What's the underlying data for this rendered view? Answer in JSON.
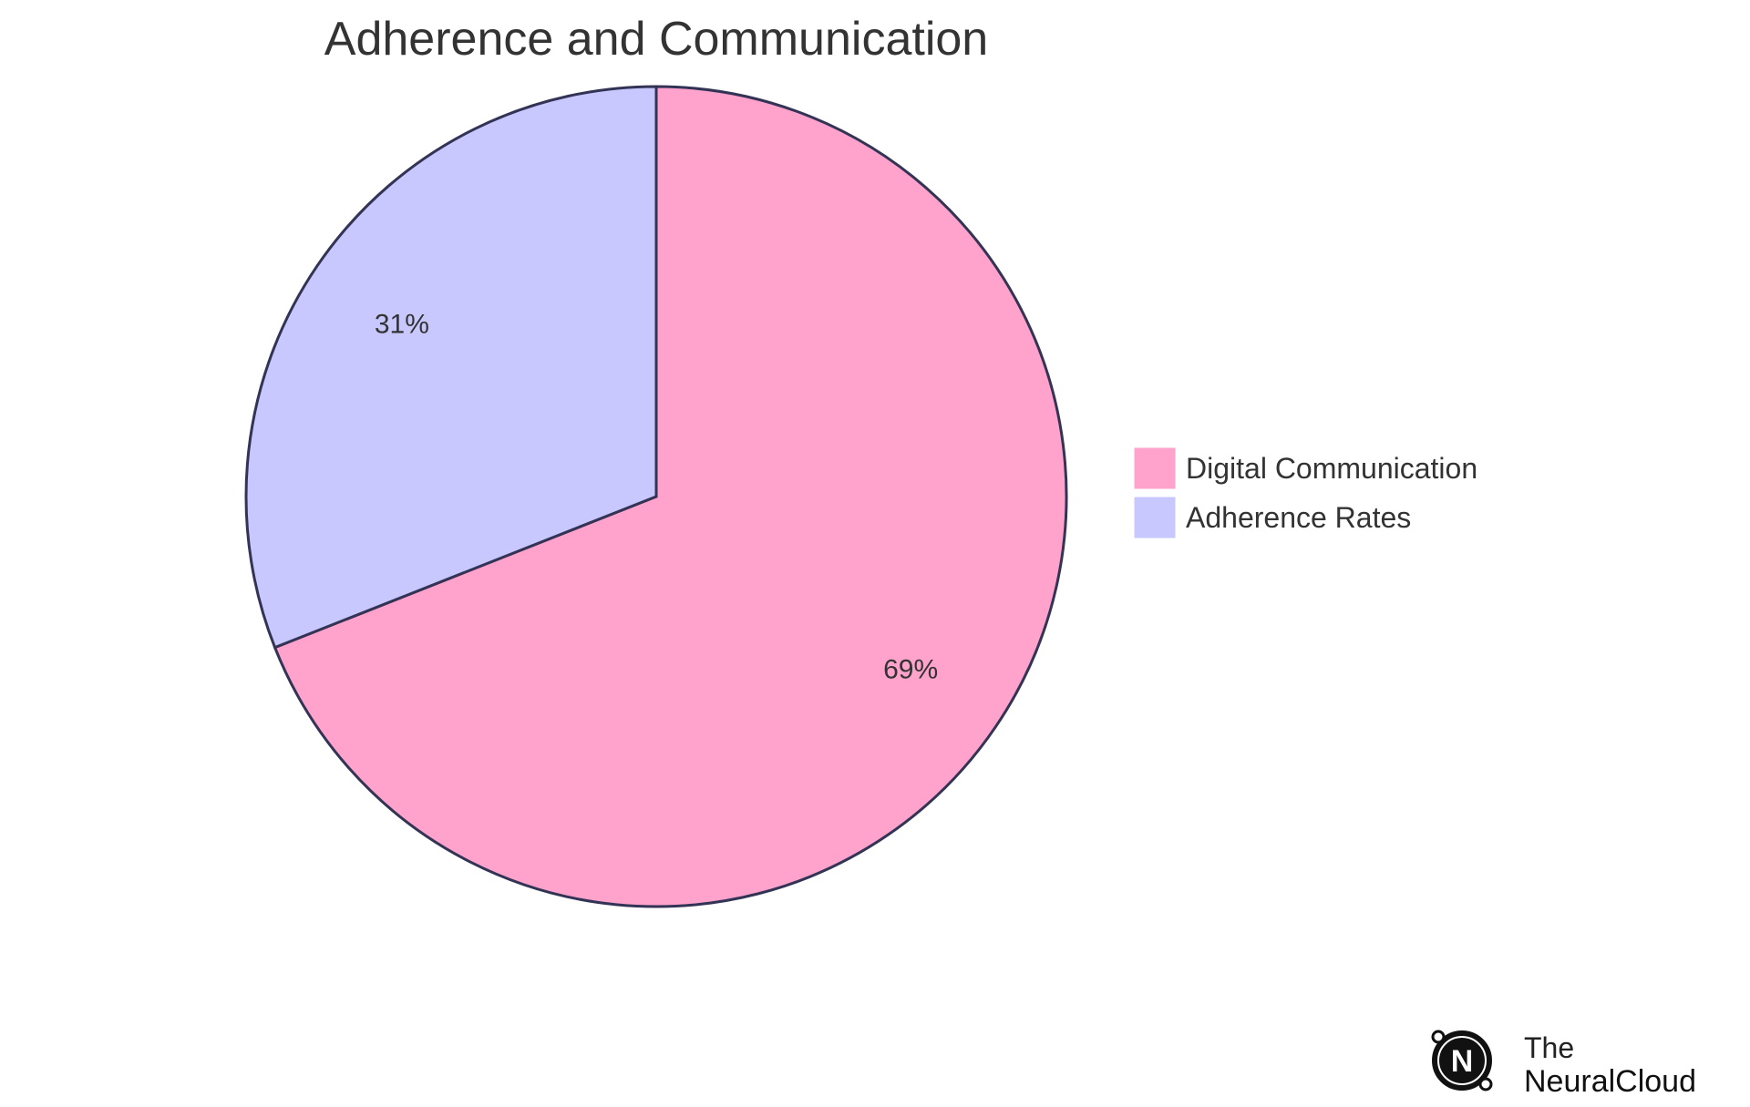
{
  "chart_data": {
    "type": "pie",
    "title": "Adherence and Communication",
    "slices": [
      {
        "name": "Digital Communication",
        "value": 69,
        "label": "69%",
        "color": "#ffa3cc"
      },
      {
        "name": "Adherence Rates",
        "value": 31,
        "label": "31%",
        "color": "#c8c8ff"
      }
    ],
    "legend_position": "right",
    "stroke_color": "#333355"
  },
  "branding": {
    "line1": "The",
    "line2": "NeuralCloud",
    "mark_letter": "N"
  }
}
